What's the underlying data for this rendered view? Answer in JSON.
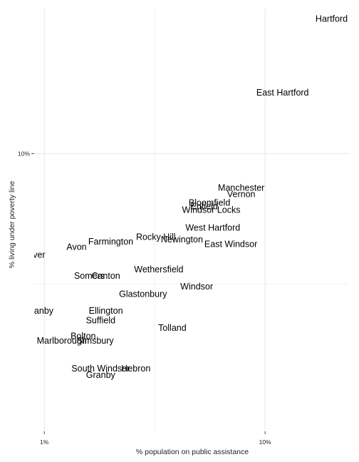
{
  "chart_data": {
    "type": "scatter",
    "title": "",
    "xlabel": "% population on public assistance",
    "ylabel": "% living under poverty line",
    "x_scale": "log",
    "y_scale": "log",
    "xlim": [
      0.9,
      24
    ],
    "ylim": [
      0.86,
      36
    ],
    "x_ticks": [
      {
        "value": 1,
        "label": "1%"
      },
      {
        "value": 10,
        "label": "10%"
      }
    ],
    "y_ticks": [
      {
        "value": 10,
        "label": "10%"
      }
    ],
    "grid": true,
    "legend": "none",
    "points": [
      {
        "label": "Hartford",
        "x": 20.0,
        "y": 33.0
      },
      {
        "label": "East Hartford",
        "x": 12.0,
        "y": 17.2
      },
      {
        "label": "Manchester",
        "x": 7.8,
        "y": 7.4
      },
      {
        "label": "Vernon",
        "x": 7.8,
        "y": 7.0
      },
      {
        "label": "Bloomfield",
        "x": 5.6,
        "y": 6.5
      },
      {
        "label": "Enfield",
        "x": 5.3,
        "y": 6.3
      },
      {
        "label": "Windsor Locks",
        "x": 5.7,
        "y": 6.1
      },
      {
        "label": "West Hartford",
        "x": 5.8,
        "y": 5.2
      },
      {
        "label": "Rocky Hill",
        "x": 3.2,
        "y": 4.8
      },
      {
        "label": "Newington",
        "x": 4.2,
        "y": 4.7
      },
      {
        "label": "East Windsor",
        "x": 7.0,
        "y": 4.5
      },
      {
        "label": "Farmington",
        "x": 2.0,
        "y": 4.6
      },
      {
        "label": "Avon",
        "x": 1.4,
        "y": 4.4
      },
      {
        "label": "Andover",
        "x": 0.85,
        "y": 4.1
      },
      {
        "label": "Wethersfield",
        "x": 3.3,
        "y": 3.6
      },
      {
        "label": "Somers",
        "x": 1.6,
        "y": 3.4
      },
      {
        "label": "Canton",
        "x": 1.9,
        "y": 3.4
      },
      {
        "label": "Windsor",
        "x": 4.9,
        "y": 3.1
      },
      {
        "label": "Glastonbury",
        "x": 2.8,
        "y": 2.9
      },
      {
        "label": "East Granby",
        "x": 0.85,
        "y": 2.5
      },
      {
        "label": "Ellington",
        "x": 1.9,
        "y": 2.5
      },
      {
        "label": "Suffield",
        "x": 1.8,
        "y": 2.3
      },
      {
        "label": "Tolland",
        "x": 3.8,
        "y": 2.15
      },
      {
        "label": "Bolton",
        "x": 1.5,
        "y": 2.0
      },
      {
        "label": "Marlborough",
        "x": 1.2,
        "y": 1.92
      },
      {
        "label": "Simsbury",
        "x": 1.7,
        "y": 1.92
      },
      {
        "label": "South Windsor",
        "x": 1.8,
        "y": 1.5
      },
      {
        "label": "Hebron",
        "x": 2.6,
        "y": 1.5
      },
      {
        "label": "Granby",
        "x": 1.8,
        "y": 1.42
      }
    ]
  }
}
